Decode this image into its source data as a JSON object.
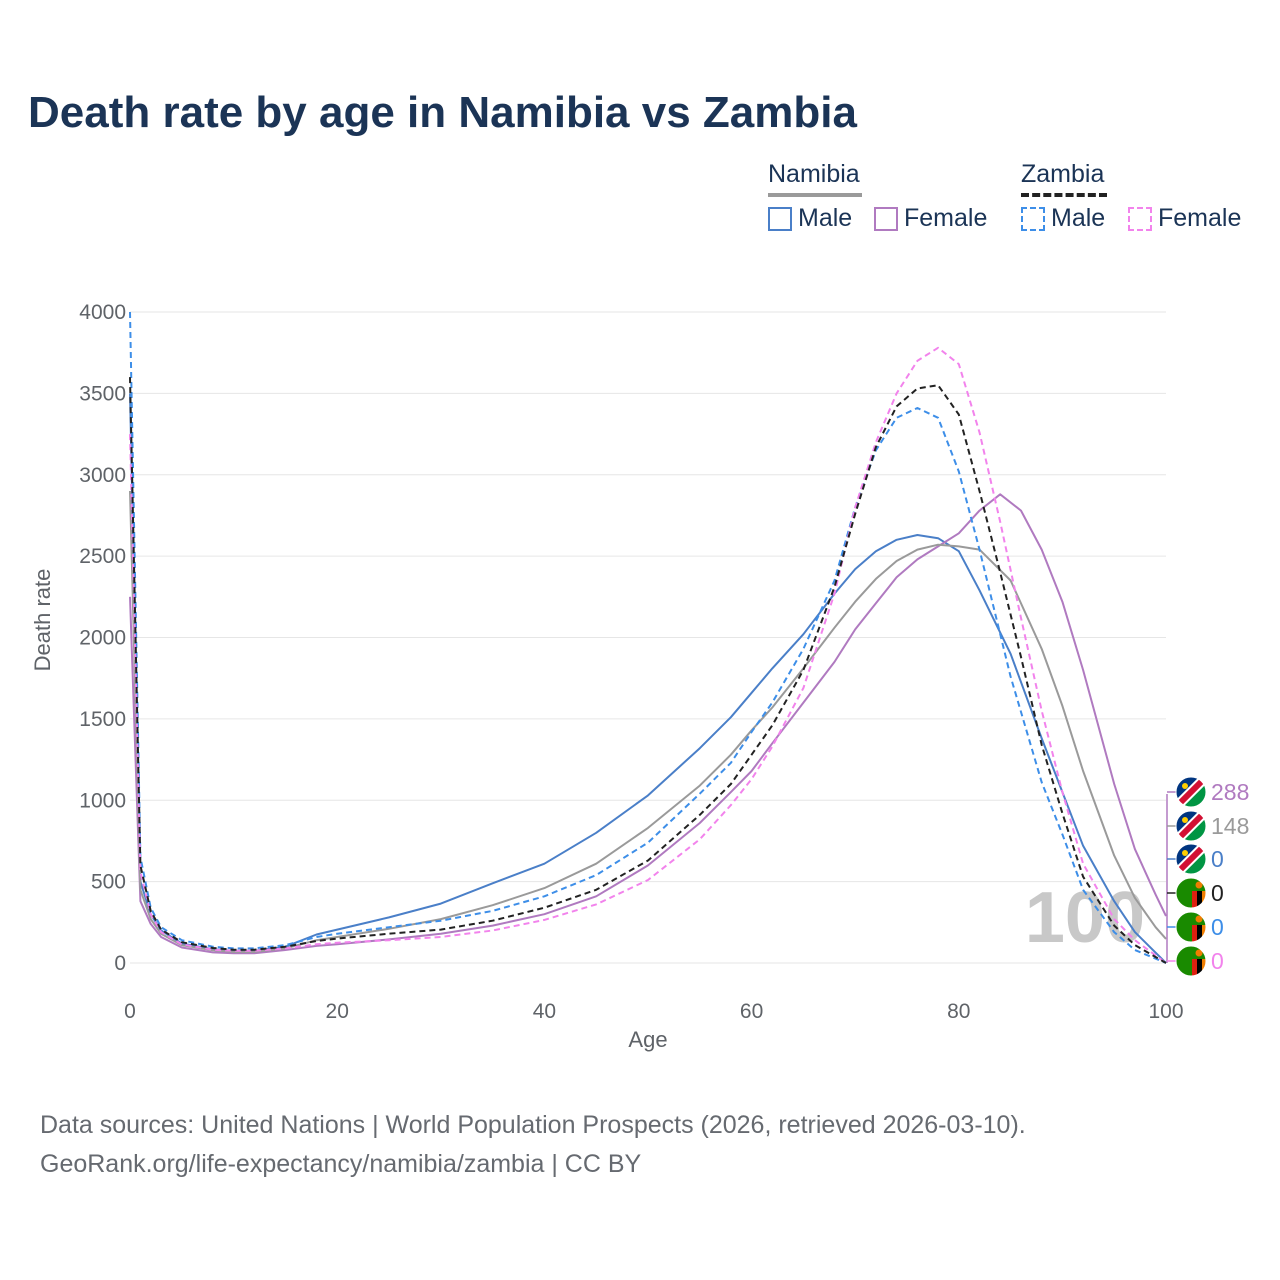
{
  "title": "Death rate by age in Namibia vs Zambia",
  "legend": {
    "groups": [
      {
        "name": "Namibia",
        "line_color": "#9a9a9a",
        "line_style": "solid",
        "items": [
          {
            "label": "Male",
            "color": "#4a7fc8",
            "style": "solid"
          },
          {
            "label": "Female",
            "color": "#b07ac0",
            "style": "solid"
          }
        ]
      },
      {
        "name": "Zambia",
        "line_color": "#222222",
        "line_style": "dashed",
        "items": [
          {
            "label": "Male",
            "color": "#3d8ee8",
            "style": "dashed"
          },
          {
            "label": "Female",
            "color": "#f283ec",
            "style": "dashed"
          }
        ]
      }
    ]
  },
  "footer": {
    "line1": "Data sources: United Nations | World Population Prospects (2026, retrieved 2026-03-10).",
    "line2": "GeoRank.org/life-expectancy/namibia/zambia | CC BY"
  },
  "chart_data": {
    "type": "line",
    "title": "Death rate by age in Namibia vs Zambia",
    "xlabel": "Age",
    "ylabel": "Death rate",
    "xlim": [
      0,
      100
    ],
    "ylim": [
      0,
      4000
    ],
    "x_ticks": [
      "0",
      "20",
      "40",
      "60",
      "80",
      "100"
    ],
    "y_ticks": [
      "0",
      "500",
      "1000",
      "1500",
      "2000",
      "2500",
      "3000",
      "3500",
      "4000"
    ],
    "current_age_label": "100",
    "series": [
      {
        "name": "Namibia Male",
        "color": "#4a7fc8",
        "dash": false,
        "end_label": "0",
        "points": [
          [
            0,
            3500
          ],
          [
            1,
            500
          ],
          [
            2,
            300
          ],
          [
            3,
            200
          ],
          [
            5,
            120
          ],
          [
            8,
            85
          ],
          [
            10,
            75
          ],
          [
            12,
            75
          ],
          [
            15,
            100
          ],
          [
            18,
            175
          ],
          [
            20,
            205
          ],
          [
            25,
            280
          ],
          [
            30,
            365
          ],
          [
            35,
            490
          ],
          [
            40,
            610
          ],
          [
            45,
            800
          ],
          [
            50,
            1030
          ],
          [
            55,
            1320
          ],
          [
            58,
            1510
          ],
          [
            60,
            1660
          ],
          [
            62,
            1810
          ],
          [
            65,
            2020
          ],
          [
            68,
            2270
          ],
          [
            70,
            2420
          ],
          [
            72,
            2530
          ],
          [
            74,
            2600
          ],
          [
            76,
            2630
          ],
          [
            78,
            2610
          ],
          [
            80,
            2530
          ],
          [
            82,
            2290
          ],
          [
            85,
            1900
          ],
          [
            88,
            1380
          ],
          [
            90,
            1050
          ],
          [
            92,
            720
          ],
          [
            95,
            380
          ],
          [
            97,
            190
          ],
          [
            100,
            0
          ]
        ]
      },
      {
        "name": "Namibia Female",
        "color": "#b07ac0",
        "dash": false,
        "end_label": "288",
        "points": [
          [
            0,
            2250
          ],
          [
            1,
            380
          ],
          [
            2,
            240
          ],
          [
            3,
            160
          ],
          [
            5,
            95
          ],
          [
            8,
            65
          ],
          [
            10,
            60
          ],
          [
            12,
            60
          ],
          [
            15,
            80
          ],
          [
            18,
            105
          ],
          [
            20,
            115
          ],
          [
            25,
            145
          ],
          [
            30,
            180
          ],
          [
            35,
            230
          ],
          [
            40,
            300
          ],
          [
            45,
            410
          ],
          [
            50,
            600
          ],
          [
            55,
            860
          ],
          [
            58,
            1050
          ],
          [
            60,
            1180
          ],
          [
            62,
            1350
          ],
          [
            65,
            1600
          ],
          [
            68,
            1850
          ],
          [
            70,
            2050
          ],
          [
            72,
            2210
          ],
          [
            74,
            2370
          ],
          [
            76,
            2480
          ],
          [
            78,
            2560
          ],
          [
            80,
            2640
          ],
          [
            82,
            2780
          ],
          [
            84,
            2880
          ],
          [
            86,
            2780
          ],
          [
            88,
            2540
          ],
          [
            90,
            2220
          ],
          [
            92,
            1800
          ],
          [
            95,
            1100
          ],
          [
            97,
            700
          ],
          [
            99,
            420
          ],
          [
            100,
            288
          ]
        ]
      },
      {
        "name": "Namibia Both",
        "color": "#9a9a9a",
        "dash": false,
        "end_label": "148",
        "points": [
          [
            0,
            2900
          ],
          [
            1,
            450
          ],
          [
            2,
            270
          ],
          [
            3,
            180
          ],
          [
            5,
            110
          ],
          [
            8,
            78
          ],
          [
            10,
            68
          ],
          [
            12,
            68
          ],
          [
            15,
            90
          ],
          [
            18,
            140
          ],
          [
            20,
            160
          ],
          [
            25,
            210
          ],
          [
            30,
            270
          ],
          [
            35,
            355
          ],
          [
            40,
            460
          ],
          [
            45,
            610
          ],
          [
            50,
            830
          ],
          [
            55,
            1090
          ],
          [
            58,
            1280
          ],
          [
            60,
            1430
          ],
          [
            62,
            1570
          ],
          [
            65,
            1810
          ],
          [
            68,
            2060
          ],
          [
            70,
            2220
          ],
          [
            72,
            2360
          ],
          [
            74,
            2470
          ],
          [
            76,
            2540
          ],
          [
            78,
            2570
          ],
          [
            80,
            2560
          ],
          [
            82,
            2540
          ],
          [
            85,
            2350
          ],
          [
            88,
            1930
          ],
          [
            90,
            1580
          ],
          [
            92,
            1180
          ],
          [
            95,
            660
          ],
          [
            97,
            400
          ],
          [
            99,
            220
          ],
          [
            100,
            148
          ]
        ]
      },
      {
        "name": "Zambia Male",
        "color": "#3d8ee8",
        "dash": true,
        "end_label": "0",
        "points": [
          [
            0,
            4000
          ],
          [
            1,
            650
          ],
          [
            2,
            340
          ],
          [
            3,
            220
          ],
          [
            5,
            140
          ],
          [
            8,
            100
          ],
          [
            10,
            90
          ],
          [
            12,
            90
          ],
          [
            15,
            110
          ],
          [
            18,
            160
          ],
          [
            20,
            180
          ],
          [
            25,
            220
          ],
          [
            30,
            260
          ],
          [
            35,
            320
          ],
          [
            40,
            410
          ],
          [
            45,
            540
          ],
          [
            50,
            740
          ],
          [
            55,
            1040
          ],
          [
            58,
            1230
          ],
          [
            60,
            1420
          ],
          [
            62,
            1600
          ],
          [
            65,
            1930
          ],
          [
            68,
            2350
          ],
          [
            70,
            2800
          ],
          [
            72,
            3150
          ],
          [
            74,
            3350
          ],
          [
            76,
            3410
          ],
          [
            78,
            3350
          ],
          [
            80,
            3020
          ],
          [
            82,
            2540
          ],
          [
            85,
            1760
          ],
          [
            88,
            1110
          ],
          [
            90,
            790
          ],
          [
            92,
            450
          ],
          [
            95,
            190
          ],
          [
            97,
            80
          ],
          [
            100,
            0
          ]
        ]
      },
      {
        "name": "Zambia Female",
        "color": "#f283ec",
        "dash": true,
        "end_label": "0",
        "points": [
          [
            0,
            3250
          ],
          [
            1,
            560
          ],
          [
            2,
            300
          ],
          [
            3,
            190
          ],
          [
            5,
            115
          ],
          [
            8,
            82
          ],
          [
            10,
            75
          ],
          [
            12,
            75
          ],
          [
            15,
            90
          ],
          [
            18,
            115
          ],
          [
            20,
            125
          ],
          [
            25,
            140
          ],
          [
            30,
            160
          ],
          [
            35,
            200
          ],
          [
            40,
            265
          ],
          [
            45,
            360
          ],
          [
            50,
            510
          ],
          [
            55,
            760
          ],
          [
            58,
            970
          ],
          [
            60,
            1130
          ],
          [
            62,
            1330
          ],
          [
            65,
            1690
          ],
          [
            68,
            2270
          ],
          [
            70,
            2800
          ],
          [
            72,
            3200
          ],
          [
            74,
            3500
          ],
          [
            76,
            3700
          ],
          [
            78,
            3780
          ],
          [
            80,
            3680
          ],
          [
            82,
            3260
          ],
          [
            84,
            2710
          ],
          [
            86,
            2120
          ],
          [
            88,
            1550
          ],
          [
            90,
            1050
          ],
          [
            92,
            610
          ],
          [
            95,
            270
          ],
          [
            97,
            140
          ],
          [
            100,
            0
          ]
        ]
      },
      {
        "name": "Zambia Both",
        "color": "#222222",
        "dash": true,
        "end_label": "0",
        "points": [
          [
            0,
            3600
          ],
          [
            1,
            600
          ],
          [
            2,
            320
          ],
          [
            3,
            205
          ],
          [
            5,
            128
          ],
          [
            8,
            92
          ],
          [
            10,
            82
          ],
          [
            12,
            82
          ],
          [
            15,
            100
          ],
          [
            18,
            135
          ],
          [
            20,
            150
          ],
          [
            25,
            180
          ],
          [
            30,
            205
          ],
          [
            35,
            260
          ],
          [
            40,
            340
          ],
          [
            45,
            450
          ],
          [
            50,
            630
          ],
          [
            55,
            910
          ],
          [
            58,
            1100
          ],
          [
            60,
            1280
          ],
          [
            62,
            1460
          ],
          [
            65,
            1800
          ],
          [
            68,
            2310
          ],
          [
            70,
            2760
          ],
          [
            72,
            3170
          ],
          [
            74,
            3420
          ],
          [
            76,
            3530
          ],
          [
            78,
            3550
          ],
          [
            80,
            3370
          ],
          [
            82,
            2900
          ],
          [
            84,
            2400
          ],
          [
            86,
            1880
          ],
          [
            88,
            1340
          ],
          [
            90,
            920
          ],
          [
            92,
            530
          ],
          [
            95,
            230
          ],
          [
            97,
            110
          ],
          [
            100,
            0
          ]
        ]
      }
    ]
  }
}
